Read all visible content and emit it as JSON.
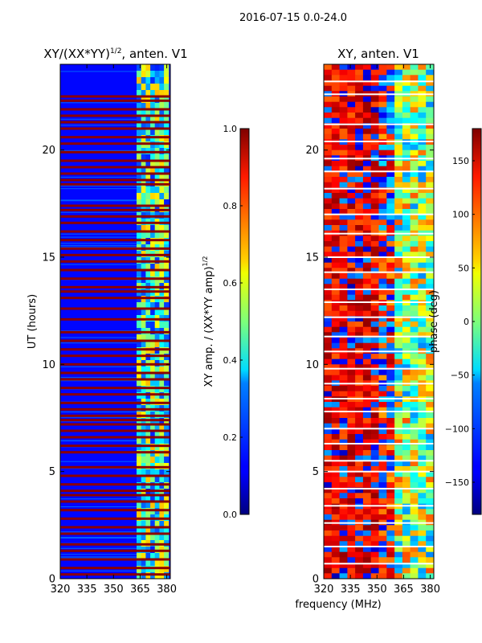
{
  "suptitle": "2016-07-15 0.0-24.0",
  "colors": {
    "flag_red": "#8b0000",
    "flag_white": "#ffffff",
    "yellow_flag": "#e8ff40",
    "background": "#ffffff"
  },
  "chart_data": [
    {
      "type": "heatmap",
      "title": "XY/(XX*YY)",
      "title_superscript": "1/2",
      "title_suffix": ", anten. V1",
      "xlabel": "",
      "ylabel": "UT (hours)",
      "xlim": [
        320,
        382
      ],
      "ylim": [
        0,
        24
      ],
      "xticks": [
        320,
        335,
        350,
        365,
        380
      ],
      "yticks": [
        0,
        5,
        10,
        15,
        20
      ],
      "colorbar": {
        "label": "XY amp. / (XX*YY amp)",
        "label_superscript": "1/2",
        "range": [
          0.0,
          1.0
        ],
        "ticks": [
          "0.0",
          "0.2",
          "0.4",
          "0.6",
          "0.8",
          "1.0"
        ],
        "tick_values": [
          0.0,
          0.2,
          0.4,
          0.6,
          0.8,
          1.0
        ],
        "colormap": "jet"
      },
      "baseline_value": 0.13,
      "rfi_band_mhz": [
        363,
        381
      ],
      "flagged_rows_hours": [
        0.2,
        0.5,
        0.9,
        1.3,
        1.6,
        2.1,
        2.4,
        2.8,
        3.2,
        3.6,
        3.9,
        4.1,
        4.4,
        4.8,
        5.2,
        5.9,
        6.2,
        6.6,
        6.9,
        7.2,
        7.4,
        7.6,
        7.9,
        8.2,
        8.6,
        8.9,
        9.3,
        9.6,
        10.0,
        10.4,
        10.7,
        11.1,
        11.5,
        12.1,
        12.6,
        13.1,
        13.4,
        13.6,
        14.0,
        14.4,
        14.8,
        15.1,
        15.4,
        15.8,
        16.2,
        16.6,
        16.9,
        17.2,
        17.4,
        18.4,
        18.6,
        18.9,
        19.2,
        19.5,
        19.9,
        20.3,
        20.6,
        21.0,
        21.3,
        21.6,
        21.9,
        22.3,
        22.5
      ]
    },
    {
      "type": "heatmap",
      "title": "XY, anten. V1",
      "xlabel": "frequency (MHz)",
      "ylabel": "",
      "xlim": [
        320,
        382
      ],
      "ylim": [
        0,
        24
      ],
      "xticks": [
        320,
        335,
        350,
        365,
        380
      ],
      "yticks": [
        0,
        5,
        10,
        15,
        20
      ],
      "colorbar": {
        "label": "phase (deg)",
        "range": [
          -180,
          180
        ],
        "ticks": [
          "−150",
          "−100",
          "−50",
          "0",
          "50",
          "100",
          "150"
        ],
        "tick_values": [
          -150,
          -100,
          -50,
          0,
          50,
          100,
          150
        ],
        "colormap": "jet"
      },
      "white_rows_hours": [
        0.7,
        1.5,
        2.6,
        3.4,
        4.2,
        5.0,
        5.5,
        6.3,
        7.0,
        7.8,
        8.4,
        9.1,
        9.8,
        10.6,
        11.3,
        12.2,
        12.9,
        13.5,
        14.3,
        15.0,
        16.1,
        17.0,
        18.2,
        19.0,
        19.6,
        20.4,
        21.2,
        22.6,
        23.2
      ]
    }
  ]
}
